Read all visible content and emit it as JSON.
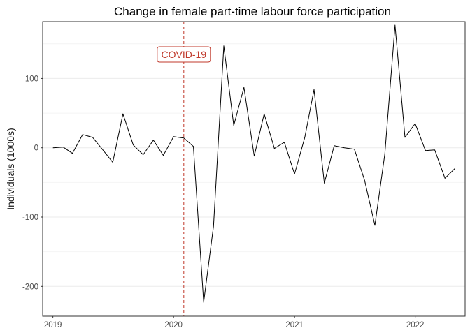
{
  "chart_data": {
    "type": "line",
    "title": "Change in female part-time labour force participation",
    "xlabel": "",
    "ylabel": "Individuals (1000s)",
    "x_ticks": [
      "2019",
      "2020",
      "2021",
      "2022"
    ],
    "y_ticks": [
      -200,
      -100,
      0,
      100
    ],
    "xlim": [
      "2018-12-01",
      "2022-06-01"
    ],
    "ylim": [
      -243,
      182
    ],
    "grid": true,
    "legend": "none",
    "series_color": "#000000",
    "annotation": {
      "label": "COVID-19",
      "x": "2020-02-01",
      "color": "#c0392b"
    },
    "x": [
      "2019-01",
      "2019-02",
      "2019-03",
      "2019-04",
      "2019-05",
      "2019-06",
      "2019-07",
      "2019-08",
      "2019-09",
      "2019-10",
      "2019-11",
      "2019-12",
      "2020-01",
      "2020-02",
      "2020-03",
      "2020-04",
      "2020-05",
      "2020-06",
      "2020-07",
      "2020-08",
      "2020-09",
      "2020-10",
      "2020-11",
      "2020-12",
      "2021-01",
      "2021-02",
      "2021-03",
      "2021-04",
      "2021-05",
      "2021-06",
      "2021-07",
      "2021-08",
      "2021-09",
      "2021-10",
      "2021-11",
      "2021-12",
      "2022-01",
      "2022-02",
      "2022-03",
      "2022-04",
      "2022-05"
    ],
    "series": [
      {
        "values": [
          0,
          1,
          -8,
          19,
          15,
          -3,
          -21,
          49,
          4,
          -10,
          11,
          -11,
          16,
          14,
          2,
          -223,
          -113,
          147,
          32,
          87,
          -12,
          49,
          -1,
          8,
          -38,
          15,
          84,
          -51,
          3,
          0,
          -2,
          -47,
          -112,
          -9,
          177,
          15,
          35,
          -4,
          -3,
          -44,
          -30
        ]
      }
    ]
  }
}
